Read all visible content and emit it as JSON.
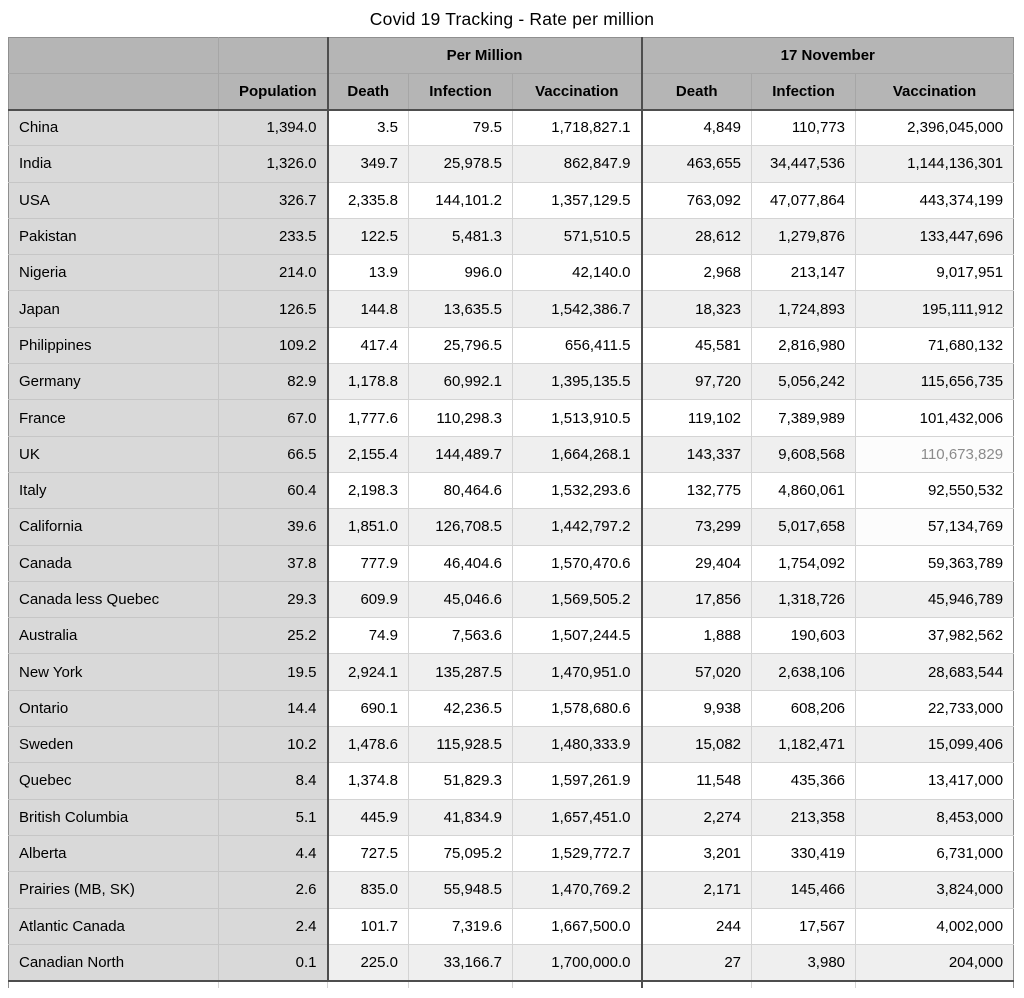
{
  "title": "Covid 19 Tracking - Rate per million",
  "colors": {
    "header_bg": "#b5b5b5",
    "label_column_bg": "#d9d9d9",
    "alt_row_bg": "#efefef",
    "row_bg": "#ffffff",
    "dark_border": "#4e4e4e",
    "light_border": "#d4d4d4",
    "muted_text": "#8b8b8b",
    "text": "#000000"
  },
  "chart_data": {
    "type": "table",
    "title": "Covid 19 Tracking - Rate per million",
    "group_headers": [
      "",
      "Per Million",
      "17 November"
    ],
    "column_headers": [
      "",
      "Population",
      "Death",
      "Infection",
      "Vaccination",
      "Death",
      "Infection",
      "Vaccination"
    ],
    "rows": [
      {
        "name": "China",
        "population": "1,394.0",
        "pm_death": "3.5",
        "pm_infection": "79.5",
        "pm_vaccination": "1,718,827.1",
        "nov_death": "4,849",
        "nov_infection": "110,773",
        "nov_vaccination": "2,396,045,000"
      },
      {
        "name": "India",
        "population": "1,326.0",
        "pm_death": "349.7",
        "pm_infection": "25,978.5",
        "pm_vaccination": "862,847.9",
        "nov_death": "463,655",
        "nov_infection": "34,447,536",
        "nov_vaccination": "1,144,136,301"
      },
      {
        "name": "USA",
        "population": "326.7",
        "pm_death": "2,335.8",
        "pm_infection": "144,101.2",
        "pm_vaccination": "1,357,129.5",
        "nov_death": "763,092",
        "nov_infection": "47,077,864",
        "nov_vaccination": "443,374,199"
      },
      {
        "name": "Pakistan",
        "population": "233.5",
        "pm_death": "122.5",
        "pm_infection": "5,481.3",
        "pm_vaccination": "571,510.5",
        "nov_death": "28,612",
        "nov_infection": "1,279,876",
        "nov_vaccination": "133,447,696"
      },
      {
        "name": "Nigeria",
        "population": "214.0",
        "pm_death": "13.9",
        "pm_infection": "996.0",
        "pm_vaccination": "42,140.0",
        "nov_death": "2,968",
        "nov_infection": "213,147",
        "nov_vaccination": "9,017,951"
      },
      {
        "name": "Japan",
        "population": "126.5",
        "pm_death": "144.8",
        "pm_infection": "13,635.5",
        "pm_vaccination": "1,542,386.7",
        "nov_death": "18,323",
        "nov_infection": "1,724,893",
        "nov_vaccination": "195,111,912"
      },
      {
        "name": "Philippines",
        "population": "109.2",
        "pm_death": "417.4",
        "pm_infection": "25,796.5",
        "pm_vaccination": "656,411.5",
        "nov_death": "45,581",
        "nov_infection": "2,816,980",
        "nov_vaccination": "71,680,132"
      },
      {
        "name": "Germany",
        "population": "82.9",
        "pm_death": "1,178.8",
        "pm_infection": "60,992.1",
        "pm_vaccination": "1,395,135.5",
        "nov_death": "97,720",
        "nov_infection": "5,056,242",
        "nov_vaccination": "115,656,735"
      },
      {
        "name": "France",
        "population": "67.0",
        "pm_death": "1,777.6",
        "pm_infection": "110,298.3",
        "pm_vaccination": "1,513,910.5",
        "nov_death": "119,102",
        "nov_infection": "7,389,989",
        "nov_vaccination": "101,432,006"
      },
      {
        "name": "UK",
        "population": "66.5",
        "pm_death": "2,155.4",
        "pm_infection": "144,489.7",
        "pm_vaccination": "1,664,268.1",
        "nov_death": "143,337",
        "nov_infection": "9,608,568",
        "nov_vaccination": "110,673,829",
        "highlight": {
          "nov_vaccination": "hl muted"
        }
      },
      {
        "name": "Italy",
        "population": "60.4",
        "pm_death": "2,198.3",
        "pm_infection": "80,464.6",
        "pm_vaccination": "1,532,293.6",
        "nov_death": "132,775",
        "nov_infection": "4,860,061",
        "nov_vaccination": "92,550,532"
      },
      {
        "name": "California",
        "population": "39.6",
        "pm_death": "1,851.0",
        "pm_infection": "126,708.5",
        "pm_vaccination": "1,442,797.2",
        "nov_death": "73,299",
        "nov_infection": "5,017,658",
        "nov_vaccination": "57,134,769",
        "highlight": {
          "nov_vaccination": "hl"
        }
      },
      {
        "name": "Canada",
        "population": "37.8",
        "pm_death": "777.9",
        "pm_infection": "46,404.6",
        "pm_vaccination": "1,570,470.6",
        "nov_death": "29,404",
        "nov_infection": "1,754,092",
        "nov_vaccination": "59,363,789"
      },
      {
        "name": "Canada less Quebec",
        "population": "29.3",
        "pm_death": "609.9",
        "pm_infection": "45,046.6",
        "pm_vaccination": "1,569,505.2",
        "nov_death": "17,856",
        "nov_infection": "1,318,726",
        "nov_vaccination": "45,946,789"
      },
      {
        "name": "Australia",
        "population": "25.2",
        "pm_death": "74.9",
        "pm_infection": "7,563.6",
        "pm_vaccination": "1,507,244.5",
        "nov_death": "1,888",
        "nov_infection": "190,603",
        "nov_vaccination": "37,982,562"
      },
      {
        "name": "New York",
        "population": "19.5",
        "pm_death": "2,924.1",
        "pm_infection": "135,287.5",
        "pm_vaccination": "1,470,951.0",
        "nov_death": "57,020",
        "nov_infection": "2,638,106",
        "nov_vaccination": "28,683,544"
      },
      {
        "name": "Ontario",
        "population": "14.4",
        "pm_death": "690.1",
        "pm_infection": "42,236.5",
        "pm_vaccination": "1,578,680.6",
        "nov_death": "9,938",
        "nov_infection": "608,206",
        "nov_vaccination": "22,733,000"
      },
      {
        "name": "Sweden",
        "population": "10.2",
        "pm_death": "1,478.6",
        "pm_infection": "115,928.5",
        "pm_vaccination": "1,480,333.9",
        "nov_death": "15,082",
        "nov_infection": "1,182,471",
        "nov_vaccination": "15,099,406"
      },
      {
        "name": "Quebec",
        "population": "8.4",
        "pm_death": "1,374.8",
        "pm_infection": "51,829.3",
        "pm_vaccination": "1,597,261.9",
        "nov_death": "11,548",
        "nov_infection": "435,366",
        "nov_vaccination": "13,417,000"
      },
      {
        "name": "British Columbia",
        "population": "5.1",
        "pm_death": "445.9",
        "pm_infection": "41,834.9",
        "pm_vaccination": "1,657,451.0",
        "nov_death": "2,274",
        "nov_infection": "213,358",
        "nov_vaccination": "8,453,000"
      },
      {
        "name": "Alberta",
        "population": "4.4",
        "pm_death": "727.5",
        "pm_infection": "75,095.2",
        "pm_vaccination": "1,529,772.7",
        "nov_death": "3,201",
        "nov_infection": "330,419",
        "nov_vaccination": "6,731,000"
      },
      {
        "name": "Prairies (MB, SK)",
        "population": "2.6",
        "pm_death": "835.0",
        "pm_infection": "55,948.5",
        "pm_vaccination": "1,470,769.2",
        "nov_death": "2,171",
        "nov_infection": "145,466",
        "nov_vaccination": "3,824,000"
      },
      {
        "name": "Atlantic Canada",
        "population": "2.4",
        "pm_death": "101.7",
        "pm_infection": "7,319.6",
        "pm_vaccination": "1,667,500.0",
        "nov_death": "244",
        "nov_infection": "17,567",
        "nov_vaccination": "4,002,000"
      },
      {
        "name": "Canadian North",
        "population": "0.1",
        "pm_death": "225.0",
        "pm_infection": "33,166.7",
        "pm_vaccination": "1,700,000.0",
        "nov_death": "27",
        "nov_infection": "3,980",
        "nov_vaccination": "204,000"
      }
    ]
  }
}
